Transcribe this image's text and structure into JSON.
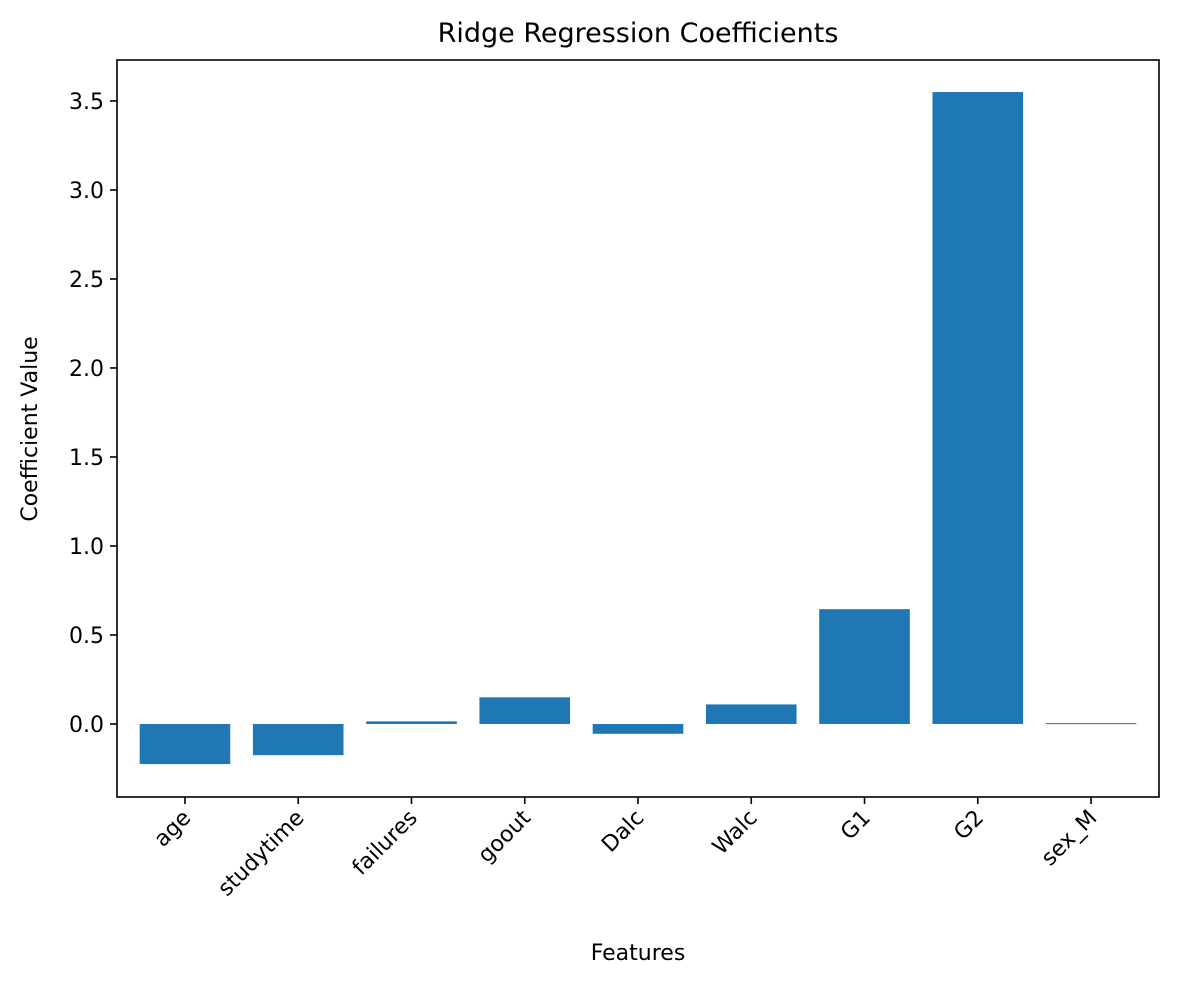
{
  "chart_data": {
    "type": "bar",
    "title": "Ridge Regression Coefficients",
    "xlabel": "Features",
    "ylabel": "Coefficient Value",
    "categories": [
      "age",
      "studytime",
      "failures",
      "goout",
      "Dalc",
      "Walc",
      "G1",
      "G2",
      "sex_M"
    ],
    "values": [
      -0.225,
      -0.175,
      0.015,
      0.15,
      -0.055,
      0.11,
      0.645,
      3.55,
      0.005
    ],
    "ylim": [
      -0.41,
      3.73
    ],
    "yticks": [
      0.0,
      0.5,
      1.0,
      1.5,
      2.0,
      2.5,
      3.0,
      3.5
    ],
    "ytick_labels": [
      "0.0",
      "0.5",
      "1.0",
      "1.5",
      "2.0",
      "2.5",
      "3.0",
      "3.5"
    ],
    "xtick_rotation": 45,
    "grid": false,
    "legend": "none",
    "bar_color": "#1f77b4"
  }
}
